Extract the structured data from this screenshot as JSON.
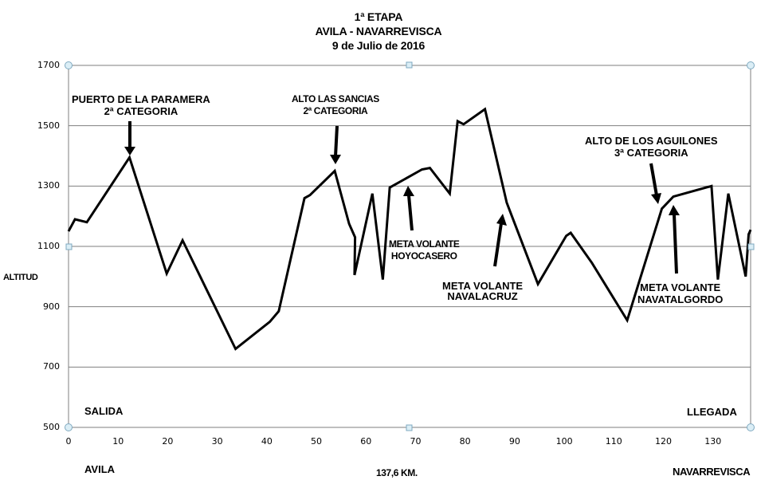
{
  "header": {
    "stage": "1ª ETAPA",
    "route": "AVILA - NAVARREVISCA",
    "date": "9 de Julio de 2016"
  },
  "axes": {
    "y_label": "ALTITUD",
    "y_ticks": [
      "1700",
      "1500",
      "1300",
      "1100",
      "900",
      "700",
      "500"
    ],
    "x_ticks": [
      "0",
      "10",
      "20",
      "30",
      "40",
      "50",
      "60",
      "70",
      "80",
      "90",
      "100",
      "110",
      "120",
      "130"
    ],
    "distance_label": "137,6 KM."
  },
  "places": {
    "start_marker": "SALIDA",
    "finish_marker": "LLEGADA",
    "start_town": "AVILA",
    "finish_town": "NAVARREVISCA"
  },
  "annotations": {
    "paramera": {
      "line1": "PUERTO DE LA PARAMERA",
      "line2": "2ª CATEGORIA"
    },
    "sancias": {
      "line1": "ALTO LAS SANCIAS",
      "line2": "2ª CATEGORIA"
    },
    "hoyocasero": {
      "line1": "META VOLANTE",
      "line2": "HOYOCASERO"
    },
    "navalacruz": {
      "line1": "META VOLANTE",
      "line2": "NAVALACRUZ"
    },
    "aguilones": {
      "line1": "ALTO DE LOS AGUILONES",
      "line2": "3ª CATEGORIA"
    },
    "navatalgordo": {
      "line1": "META VOLANTE",
      "line2": "NAVATALGORDO"
    }
  },
  "colors": {
    "line": "#000000",
    "grid": "#7f7f7f",
    "handle_fill": "#dbeef6",
    "handle_stroke": "#7fa9c0"
  },
  "chart_data": {
    "type": "line",
    "title": "1ª ETAPA AVILA - NAVARREVISCA 9 de Julio de 2016",
    "xlabel": "137,6 KM.",
    "ylabel": "ALTITUD",
    "xlim": [
      0,
      137.6
    ],
    "ylim": [
      500,
      1700
    ],
    "grid": true,
    "x": [
      0,
      1.3,
      3.7,
      12.3,
      19.8,
      23,
      33.7,
      40.6,
      42.4,
      47.6,
      48.7,
      53.7,
      56.6,
      57.8,
      57.7,
      61.3,
      63.4,
      64.8,
      71.3,
      72.9,
      76.9,
      78.5,
      79.7,
      84,
      88.4,
      94.7,
      100.4,
      101.3,
      105.6,
      112.7,
      119.7,
      122,
      129.7,
      131,
      133.1,
      136.6,
      137.2,
      137.6
    ],
    "y": [
      1150,
      1190,
      1180,
      1395,
      1010,
      1120,
      760,
      850,
      885,
      1260,
      1270,
      1350,
      1175,
      1130,
      1005,
      1275,
      990,
      1295,
      1355,
      1360,
      1275,
      1515,
      1505,
      1555,
      1245,
      975,
      1135,
      1145,
      1045,
      855,
      1225,
      1265,
      1300,
      990,
      1275,
      1000,
      1140,
      1155
    ],
    "annotations": [
      {
        "text": "PUERTO DE LA PARAMERA 2ª CATEGORIA",
        "x": 12.3,
        "y": 1395
      },
      {
        "text": "ALTO LAS SANCIAS 2ª CATEGORIA",
        "x": 53.7,
        "y": 1350
      },
      {
        "text": "META VOLANTE HOYOCASERO",
        "x": 68.5,
        "y": 1320
      },
      {
        "text": "META VOLANTE NAVALACRUZ",
        "x": 88.4,
        "y": 1245
      },
      {
        "text": "ALTO DE LOS AGUILONES 3ª CATEGORIA",
        "x": 119.7,
        "y": 1225
      },
      {
        "text": "META VOLANTE NAVATALGORDO",
        "x": 122,
        "y": 1265
      },
      {
        "text": "SALIDA",
        "x": 3,
        "y": 560
      },
      {
        "text": "LLEGADA",
        "x": 134,
        "y": 560
      }
    ]
  }
}
